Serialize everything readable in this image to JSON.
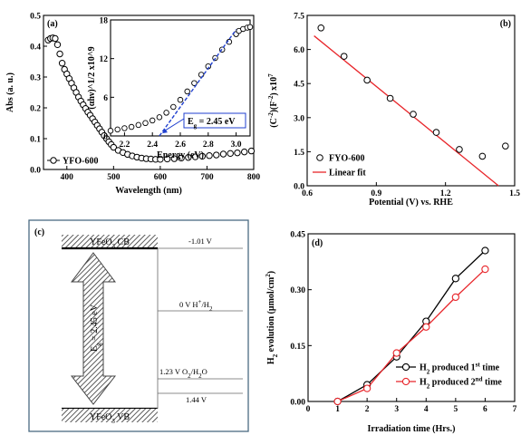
{
  "chart_data": [
    {
      "id": "a",
      "type": "line",
      "panel_label": "(a)",
      "xlabel": "Wavelength (nm)",
      "ylabel": "Abs (a. u.)",
      "xlim": [
        350,
        800
      ],
      "ylim": [
        0,
        0.5
      ],
      "xticks": [
        "400",
        "500",
        "600",
        "700",
        "800"
      ],
      "yticks": [
        "0.0",
        "0.1",
        "0.2",
        "0.3",
        "0.4",
        "0.5"
      ],
      "series": [
        {
          "name": "YFO-600",
          "marker": "open-circle",
          "color": "#000000",
          "x": [
            360,
            365,
            370,
            375,
            380,
            385,
            390,
            395,
            400,
            405,
            410,
            415,
            420,
            425,
            430,
            435,
            440,
            445,
            450,
            455,
            460,
            465,
            470,
            475,
            480,
            485,
            490,
            495,
            500,
            510,
            520,
            530,
            540,
            550,
            560,
            570,
            580,
            590,
            600,
            615,
            630,
            645,
            660,
            675,
            690,
            705,
            720,
            735,
            750,
            765,
            780,
            795
          ],
          "y": [
            0.42,
            0.425,
            0.427,
            0.425,
            0.405,
            0.375,
            0.345,
            0.325,
            0.31,
            0.295,
            0.28,
            0.265,
            0.25,
            0.235,
            0.222,
            0.21,
            0.198,
            0.186,
            0.176,
            0.165,
            0.154,
            0.143,
            0.132,
            0.121,
            0.11,
            0.1,
            0.09,
            0.081,
            0.072,
            0.062,
            0.055,
            0.049,
            0.044,
            0.04,
            0.037,
            0.035,
            0.034,
            0.033,
            0.033,
            0.034,
            0.035,
            0.037,
            0.039,
            0.041,
            0.043,
            0.045,
            0.047,
            0.05,
            0.052,
            0.054,
            0.057,
            0.06
          ]
        }
      ],
      "inset": {
        "type": "line",
        "xlabel": "Energy (eV)",
        "ylabel": "(αhν)^1/2 x10^9",
        "xlim": [
          2.1,
          3.1
        ],
        "ylim": [
          0,
          18
        ],
        "xticks": [
          "2.2",
          "2.4",
          "2.6",
          "2.8",
          "3.0"
        ],
        "yticks": [
          "0",
          "6",
          "12",
          "18"
        ],
        "series": {
          "x": [
            2.1,
            2.15,
            2.2,
            2.25,
            2.3,
            2.35,
            2.4,
            2.45,
            2.5,
            2.55,
            2.6,
            2.65,
            2.7,
            2.75,
            2.8,
            2.85,
            2.9,
            2.95,
            3.0,
            3.02,
            3.05,
            3.08,
            3.1
          ],
          "y": [
            0.8,
            1.0,
            1.2,
            1.4,
            1.7,
            2.0,
            2.4,
            2.9,
            3.6,
            4.5,
            5.6,
            6.9,
            8.2,
            9.5,
            10.8,
            12.1,
            13.4,
            14.6,
            15.8,
            16.3,
            16.6,
            16.8,
            16.9
          ]
        },
        "fit_line": {
          "x": [
            2.45,
            3.0
          ],
          "y": [
            0,
            16.5
          ],
          "color": "#1f3fcf"
        },
        "annotation": {
          "label": "E",
          "subscript": "g",
          "value": " = 2.45 eV"
        }
      }
    },
    {
      "id": "b",
      "type": "scatter",
      "panel_label": "(b)",
      "xlabel": "Potential (V) vs. RHE",
      "ylabel": "(C^-2)(F^-2) x10^7",
      "xlim": [
        0.6,
        1.5
      ],
      "ylim": [
        0,
        7.5
      ],
      "xticks": [
        "0.6",
        "0.9",
        "1.2",
        "1.5"
      ],
      "yticks": [
        "0.0",
        "1.5",
        "3.0",
        "4.5",
        "6.0",
        "7.5"
      ],
      "series": [
        {
          "name": "FYO-600",
          "marker": "open-circle",
          "color": "#000000",
          "x": [
            0.66,
            0.76,
            0.86,
            0.96,
            1.06,
            1.16,
            1.26,
            1.36,
            1.46
          ],
          "y": [
            6.95,
            5.7,
            4.65,
            3.85,
            3.15,
            2.35,
            1.6,
            1.3,
            1.75
          ]
        },
        {
          "name": "Linear fit",
          "type": "line",
          "color": "#e8252a",
          "x": [
            0.63,
            1.43
          ],
          "y": [
            6.6,
            0.0
          ]
        }
      ]
    },
    {
      "id": "c",
      "type": "diagram",
      "panel_label": "(c)",
      "cb_label": "YFeO",
      "cb_sub": "3",
      "cb_suffix": " CB",
      "vb_label": "YFeO",
      "vb_sub": "3",
      "vb_suffix": " VB",
      "gap_label": "E",
      "gap_sub": "g",
      "gap_value": " = 2.45 eV",
      "levels": [
        {
          "text": "-1.01 V"
        },
        {
          "text": "0 V H",
          "sup": "+",
          "tail": "/H",
          "sub": "2"
        },
        {
          "text": "1.23 V O",
          "sub": "2",
          "tail": "/H",
          "sub2": "2",
          "tail2": "O"
        },
        {
          "text": "1.44 V"
        }
      ]
    },
    {
      "id": "d",
      "type": "line",
      "panel_label": "(d)",
      "xlabel": "Irradiation time (Hrs.)",
      "ylabel": "H2 evolution (μmol/cm2)",
      "xlim": [
        0,
        7
      ],
      "ylim": [
        0,
        0.45
      ],
      "xticks": [
        "0",
        "1",
        "2",
        "3",
        "4",
        "5",
        "6",
        "7"
      ],
      "yticks": [
        "0.00",
        "0.15",
        "0.30",
        "0.45"
      ],
      "series": [
        {
          "name": "H2 produced 1st time",
          "legend": {
            "pre": "H",
            "sub": "2",
            "mid": " produced 1",
            "sup": "st",
            "post": " time"
          },
          "color": "#000000",
          "marker": "open-circle",
          "x": [
            1,
            2,
            3,
            4,
            5,
            6
          ],
          "y": [
            0.0,
            0.045,
            0.12,
            0.215,
            0.33,
            0.405
          ]
        },
        {
          "name": "H2 produced 2nd time",
          "legend": {
            "pre": "H",
            "sub": "2",
            "mid": " produced 2",
            "sup": "nd",
            "post": " time"
          },
          "color": "#e8252a",
          "marker": "open-circle",
          "x": [
            1,
            2,
            3,
            4,
            5,
            6
          ],
          "y": [
            0.0,
            0.035,
            0.13,
            0.2,
            0.28,
            0.355
          ]
        }
      ]
    }
  ]
}
